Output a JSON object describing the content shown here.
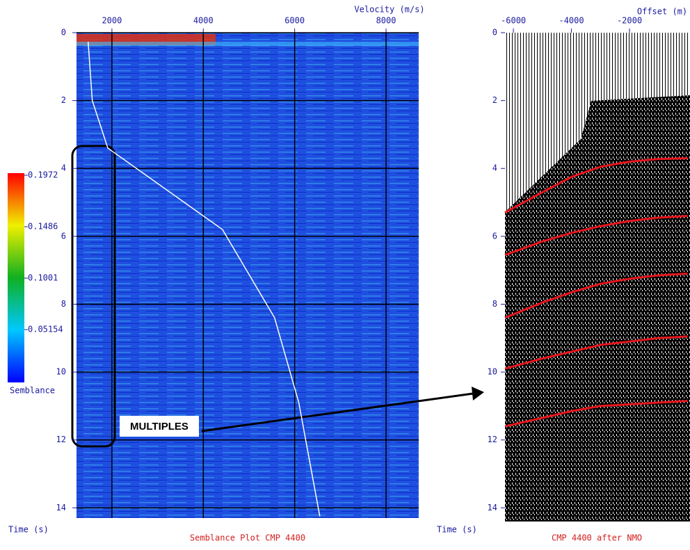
{
  "chart_data": [
    {
      "type": "semblance",
      "title": "Semblance Plot CMP 4400",
      "x_label": "Velocity (m/s)",
      "y_label": "Time (s)",
      "xlim": [
        1225,
        8715
      ],
      "ylim": [
        0,
        14.3
      ],
      "xticks": [
        2000,
        4000,
        6000,
        8000
      ],
      "yticks": [
        0,
        2,
        4,
        6,
        8,
        10,
        12,
        14
      ],
      "grid": true,
      "colorbar": {
        "label": "Semblance",
        "lim": [
          0.0017,
          0.1992
        ],
        "ticks": [
          0.05154,
          0.1001,
          0.1486,
          0.1972
        ]
      },
      "annotation": "MULTIPLES",
      "picks": {
        "color": "#ffffff",
        "x": [
          1480,
          1570,
          1910,
          4420,
          5560,
          6090,
          6550
        ],
        "values": [
          0.27,
          2,
          3.4,
          5.8,
          8.4,
          10.9,
          14.25
        ]
      }
    },
    {
      "type": "gather",
      "title": "CMP 4400 after NMO",
      "x_label": "Offset (m)",
      "y_label": "Time (s)",
      "xlim": [
        -6290,
        85
      ],
      "ylim": [
        0,
        14.3
      ],
      "xticks": [
        -6000,
        -4000,
        -2000
      ],
      "yticks": [
        0,
        2,
        4,
        6,
        8,
        10,
        12,
        14
      ],
      "event_color": "#e8141c",
      "x": [
        -6290,
        -5000,
        -4000,
        -3000,
        -2000,
        -1000,
        0
      ],
      "events": [
        {
          "values": [
            5.3,
            4.7,
            4.25,
            3.95,
            3.8,
            3.72,
            3.7
          ]
        },
        {
          "values": [
            6.55,
            6.15,
            5.9,
            5.7,
            5.55,
            5.45,
            5.4
          ]
        },
        {
          "values": [
            8.4,
            7.95,
            7.65,
            7.4,
            7.25,
            7.15,
            7.1
          ]
        },
        {
          "values": [
            9.9,
            9.6,
            9.4,
            9.2,
            9.1,
            9.0,
            8.95
          ]
        },
        {
          "values": [
            11.6,
            11.35,
            11.15,
            11.0,
            10.95,
            10.9,
            10.85
          ]
        }
      ]
    }
  ]
}
